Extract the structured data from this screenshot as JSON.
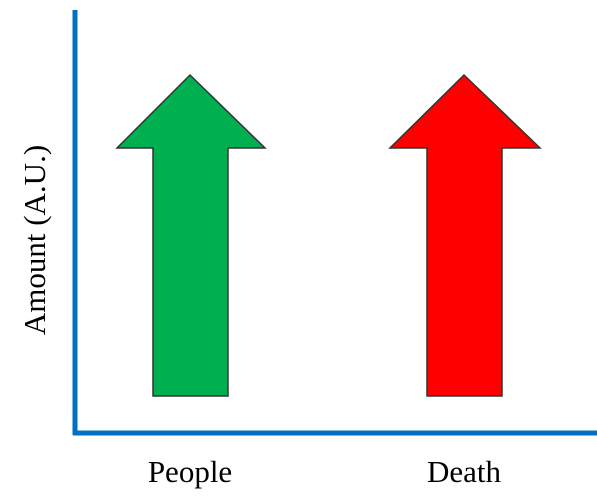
{
  "y_axis_label": "Amount (A.U.)",
  "items": [
    {
      "label": "People"
    },
    {
      "label": "Death"
    }
  ]
}
